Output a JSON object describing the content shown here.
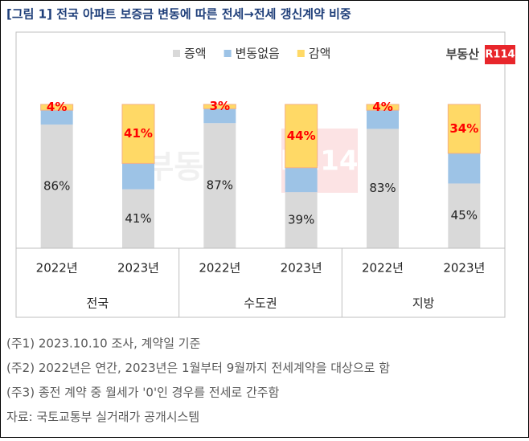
{
  "chart_data": {
    "type": "bar",
    "stacked": true,
    "title": "[그림 1] 전국 아파트 보증금 변동에 따른 전세→전세 갱신계약 비중",
    "brand": "부동산",
    "brand_mark": "R114",
    "categories": [
      "2022년",
      "2023년",
      "2022년",
      "2023년",
      "2022년",
      "2023년"
    ],
    "groups": [
      "전국",
      "수도권",
      "지방"
    ],
    "ylim": [
      0,
      100
    ],
    "series": [
      {
        "name": "증액",
        "color": "#d9d9d9",
        "values": [
          86,
          41,
          87,
          39,
          83,
          45
        ],
        "value_labels": [
          "86%",
          "41%",
          "87%",
          "39%",
          "83%",
          "45%"
        ],
        "label_color": "#222222"
      },
      {
        "name": "변동없음",
        "color": "#9dc3e6",
        "values": [
          10,
          18,
          10,
          17,
          13,
          21
        ]
      },
      {
        "name": "감액",
        "color": "#ffd966",
        "values": [
          4,
          41,
          3,
          44,
          4,
          34
        ],
        "value_labels": [
          "4%",
          "41%",
          "3%",
          "44%",
          "4%",
          "34%"
        ],
        "label_color": "#ff0000"
      }
    ],
    "notes": [
      "(주1) 2023.10.10 조사, 계약일 기준",
      "(주2) 2022년은 연간, 2023년은 1월부터 9월까지 전세계약을 대상으로 함",
      "(주3) 종전 계약 중 월세가 '0'인 경우를 전세로 간주함",
      "자료: 국토교통부 실거래가 공개시스템"
    ]
  }
}
